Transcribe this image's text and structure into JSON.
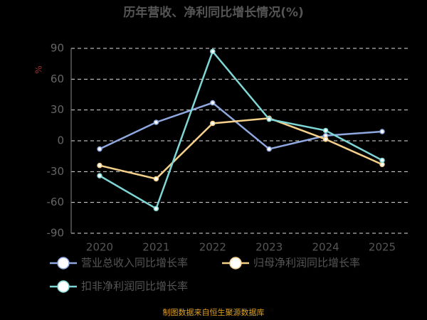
{
  "chart_data": {
    "type": "line",
    "title": "历年营收、净利同比增长情况(%)",
    "y_label": "%",
    "categories": [
      "2020",
      "2021",
      "2022",
      "2023",
      "2024",
      "2025"
    ],
    "series": [
      {
        "name": "营业总收入同比增长率",
        "color": "#8fa8e0",
        "values": [
          -8,
          18,
          37,
          -8,
          5,
          9
        ]
      },
      {
        "name": "归母净利润同比增长率",
        "color": "#f5d08a",
        "values": [
          -24,
          -37,
          17,
          22,
          1.5,
          -23
        ]
      },
      {
        "name": "扣非净利润同比增长率",
        "color": "#7fd6d6",
        "values": [
          -34,
          -66,
          87,
          21,
          10,
          -19
        ]
      }
    ],
    "ylim": [
      -90,
      90
    ],
    "yticks": [
      -90,
      -60,
      -30,
      0,
      30,
      60,
      90
    ],
    "grid": true,
    "source": "制图数据来自恒生聚源数据库"
  }
}
